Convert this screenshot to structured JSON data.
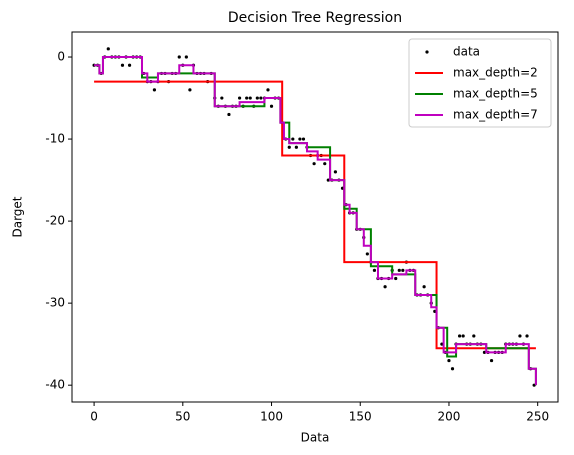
{
  "chart_data": {
    "type": "scatter-step",
    "title": "Decision Tree Regression",
    "x_label": "Data",
    "y_label": "Darget",
    "xlim": [
      -12.45,
      261.45
    ],
    "ylim": [
      -42.05,
      3.05
    ],
    "xticks": [
      0,
      50,
      100,
      150,
      200,
      250
    ],
    "yticks": [
      0,
      -10,
      -20,
      -30,
      -40
    ],
    "legend": "upper right",
    "series": [
      {
        "name": "data",
        "kind": "scatter",
        "color": "#000000",
        "x": [
          0,
          2,
          4,
          6,
          8,
          10,
          12,
          14,
          16,
          18,
          20,
          22,
          24,
          26,
          28,
          30,
          32,
          34,
          36,
          38,
          40,
          42,
          44,
          46,
          48,
          50,
          52,
          54,
          56,
          58,
          60,
          62,
          64,
          66,
          68,
          70,
          72,
          74,
          76,
          78,
          80,
          82,
          84,
          86,
          88,
          90,
          92,
          94,
          96,
          98,
          100,
          102,
          104,
          106,
          108,
          110,
          112,
          114,
          116,
          118,
          120,
          122,
          124,
          126,
          128,
          130,
          132,
          134,
          136,
          138,
          140,
          142,
          144,
          146,
          148,
          150,
          152,
          154,
          156,
          158,
          160,
          162,
          164,
          166,
          168,
          170,
          172,
          174,
          176,
          178,
          180,
          182,
          184,
          186,
          188,
          190,
          192,
          194,
          196,
          198,
          200,
          202,
          204,
          206,
          208,
          210,
          212,
          214,
          216,
          218,
          220,
          222,
          224,
          226,
          228,
          230,
          232,
          234,
          236,
          238,
          240,
          242,
          244,
          246,
          248
        ],
        "values": [
          -1,
          -1,
          -2,
          0,
          1,
          0,
          0,
          0,
          -1,
          0,
          -1,
          0,
          0,
          0,
          -2,
          -3,
          -3,
          -4,
          -3,
          -2,
          -2,
          -3,
          -2,
          -2,
          0,
          -1,
          0,
          -4,
          -1,
          -2,
          -2,
          -2,
          -3,
          -2,
          -5,
          -6,
          -5,
          -6,
          -7,
          -6,
          -6,
          -5,
          -6,
          -5,
          -5,
          -6,
          -5,
          -5,
          -5,
          -4,
          -6,
          -5,
          -5,
          -8,
          -10,
          -11,
          -10,
          -11,
          -10,
          -10,
          -11,
          -12,
          -13,
          -12,
          -12,
          -13,
          -15,
          -15,
          -14,
          -15,
          -16,
          -18,
          -19,
          -19,
          -21,
          -21,
          -22,
          -24,
          -25,
          -26,
          -27,
          -27,
          -28,
          -27,
          -26,
          -27,
          -26,
          -26,
          -25,
          -26,
          -26,
          -29,
          -29,
          -28,
          -29,
          -30,
          -31,
          -33,
          -35,
          -36,
          -37,
          -38,
          -35,
          -34,
          -34,
          -35,
          -35,
          -34,
          -35,
          -35,
          -36,
          -36,
          -37,
          -36,
          -36,
          -36,
          -35,
          -35,
          -35,
          -35,
          -34,
          -35,
          -34,
          -38,
          -40
        ]
      },
      {
        "name": "max_depth=2",
        "kind": "step",
        "color": "#ff0000",
        "x": [
          0,
          106,
          141,
          193,
          249
        ],
        "values": [
          -3,
          -12,
          -25,
          -35.5,
          -35.5
        ]
      },
      {
        "name": "max_depth=5",
        "kind": "step",
        "color": "#008000",
        "x": [
          0,
          3,
          5,
          27,
          36,
          48,
          68,
          96,
          105,
          110,
          120,
          133,
          141,
          148,
          156,
          168,
          181,
          193,
          199,
          204,
          211,
          221,
          245,
          249
        ],
        "values": [
          -1,
          -2,
          0,
          -2.5,
          -2,
          -2,
          -6,
          -5,
          -8,
          -10.5,
          -11,
          -15,
          -18.5,
          -21,
          -25.5,
          -26.5,
          -29,
          -33,
          -36.5,
          -35,
          -35,
          -35.5,
          -38,
          -40
        ]
      },
      {
        "name": "max_depth=7",
        "kind": "step",
        "color": "#bf00bf",
        "x": [
          0,
          3,
          5,
          27,
          30,
          36,
          48,
          56,
          68,
          82,
          90,
          96,
          105,
          107,
          110,
          120,
          126,
          133,
          141,
          144,
          148,
          152,
          156,
          160,
          168,
          176,
          181,
          190,
          193,
          197,
          204,
          211,
          221,
          232,
          245,
          249
        ],
        "values": [
          -1,
          -2,
          0,
          -2,
          -3,
          -2,
          -1,
          -2,
          -6,
          -5.5,
          -5.5,
          -5,
          -8,
          -10,
          -10.5,
          -11.5,
          -12.5,
          -15,
          -18,
          -19,
          -21,
          -23,
          -25,
          -27,
          -26.5,
          -26,
          -29,
          -30.5,
          -33,
          -36,
          -35,
          -35,
          -36,
          -35,
          -38,
          -40
        ]
      }
    ]
  }
}
